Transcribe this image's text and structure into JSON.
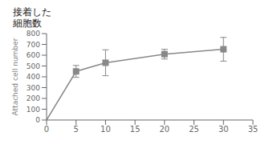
{
  "chart_data": {
    "type": "line",
    "title": "接着した",
    "subtitle": "細胞数",
    "ylabel": "Attached cell number",
    "x": [
      0,
      5,
      10,
      20,
      30
    ],
    "values": [
      0,
      450,
      530,
      610,
      655
    ],
    "yerr": [
      0,
      55,
      120,
      45,
      110
    ],
    "xlim": [
      0,
      35
    ],
    "ylim": [
      0,
      800
    ],
    "xticks": [
      0,
      5,
      10,
      15,
      20,
      25,
      30,
      35
    ],
    "yticks": [
      0,
      100,
      200,
      300,
      400,
      500,
      600,
      700,
      800
    ],
    "color": "#888888",
    "marker": "square",
    "grid": false
  }
}
